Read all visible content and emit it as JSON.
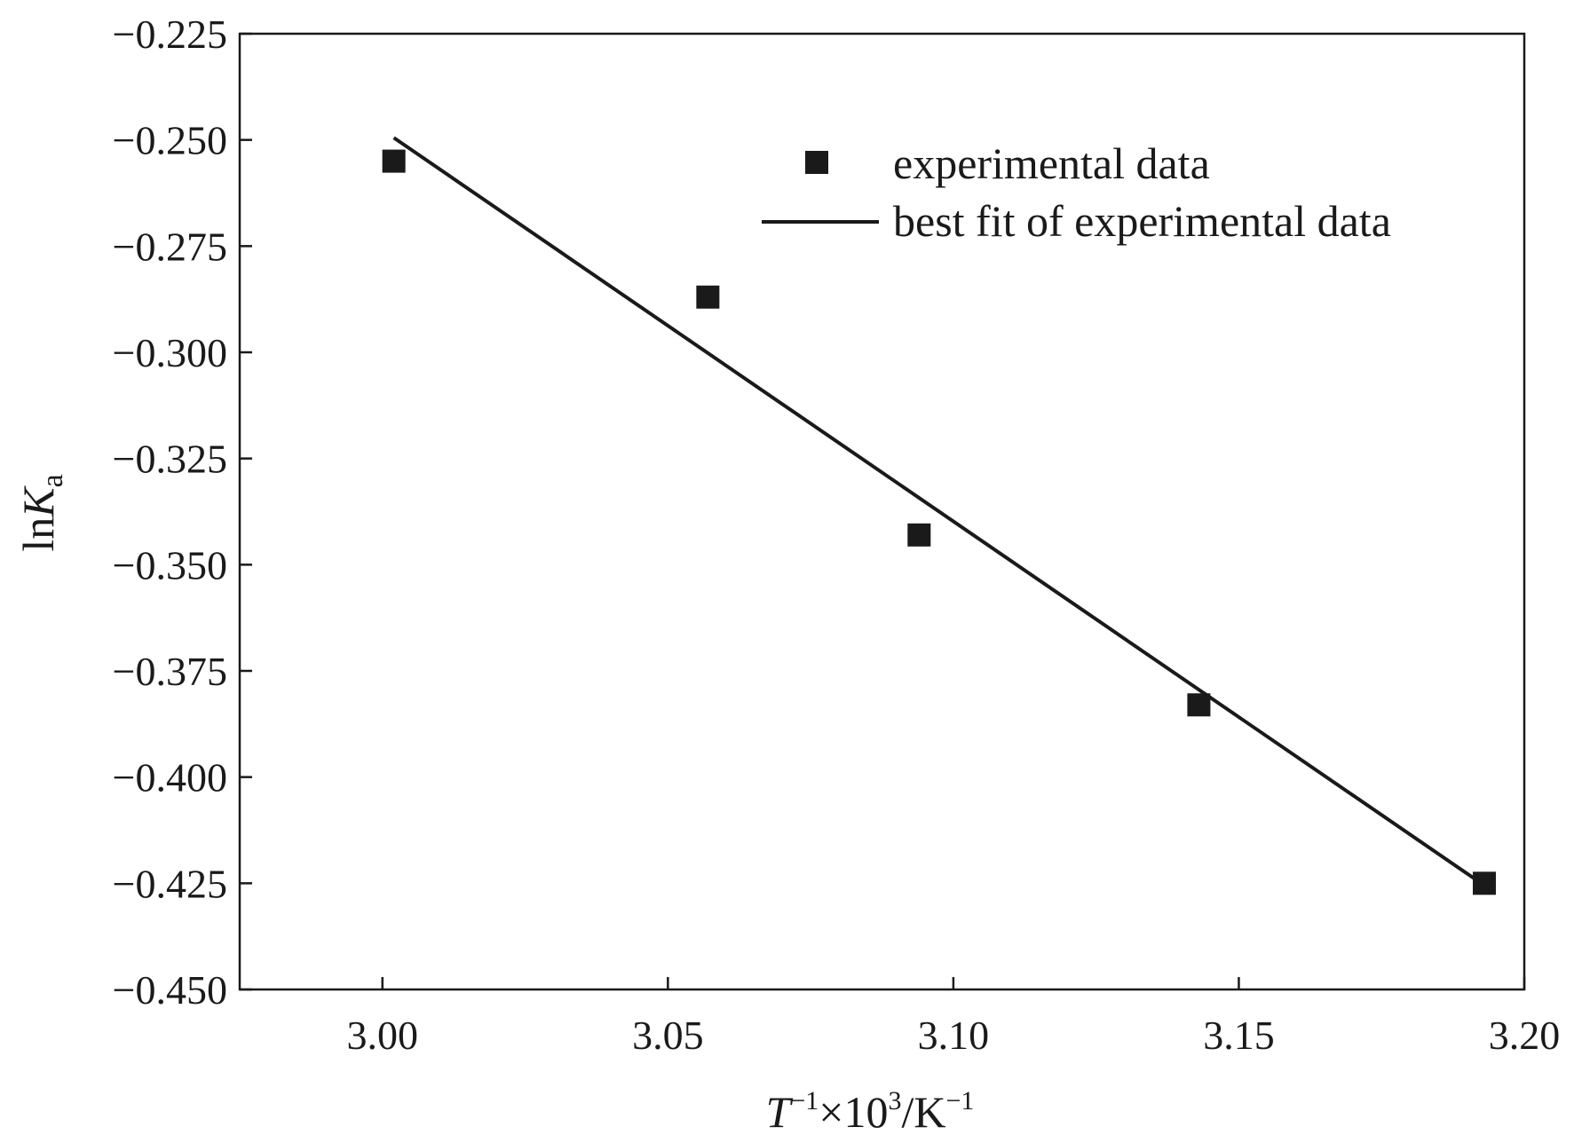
{
  "chart_data": {
    "type": "scatter",
    "title": "",
    "xlabel": {
      "base": "T",
      "sup1": "−1",
      "mid": "×10",
      "sup2": "3",
      "unit": "/K",
      "sup3": "−1"
    },
    "ylabel": {
      "base": "ln",
      "italic": "K",
      "sub": "a"
    },
    "xlim": [
      2.975,
      3.2
    ],
    "ylim": [
      -0.45,
      -0.225
    ],
    "xticks": [
      3.0,
      3.05,
      3.1,
      3.15,
      3.2
    ],
    "xtick_labels": [
      "3.00",
      "3.05",
      "3.10",
      "3.15",
      "3.20"
    ],
    "yticks": [
      -0.225,
      -0.25,
      -0.275,
      -0.3,
      -0.325,
      -0.35,
      -0.375,
      -0.4,
      -0.425,
      -0.45
    ],
    "ytick_labels": [
      "−0.225",
      "−0.250",
      "−0.275",
      "−0.300",
      "−0.325",
      "−0.350",
      "−0.375",
      "−0.400",
      "−0.425",
      "−0.450"
    ],
    "grid": false,
    "legend_position": "top-right",
    "series": [
      {
        "name": "experimental data",
        "type": "scatter",
        "marker": "square",
        "color": "#1a1a1a",
        "x": [
          3.002,
          3.057,
          3.094,
          3.143,
          3.193
        ],
        "y": [
          -0.255,
          -0.287,
          -0.343,
          -0.383,
          -0.425
        ]
      },
      {
        "name": "best fit of experimental data",
        "type": "line",
        "color": "#1a1a1a",
        "x": [
          3.002,
          3.193
        ],
        "y": [
          -0.2495,
          -0.4255
        ]
      }
    ]
  }
}
